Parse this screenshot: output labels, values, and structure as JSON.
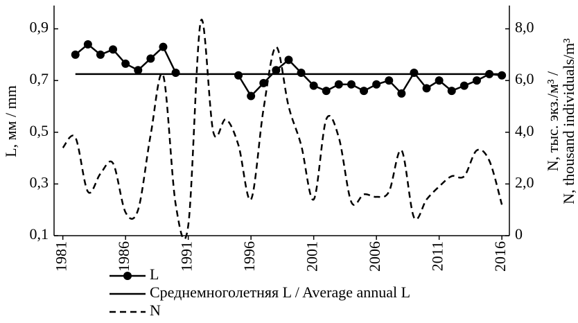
{
  "chart_data": {
    "type": "line",
    "y_label": "L, мм / mm",
    "y2_label": [
      "N, тыс. экз./м³ /",
      "N, thousand individuals/m³"
    ],
    "x": [
      1981,
      1982,
      1983,
      1984,
      1985,
      1986,
      1987,
      1988,
      1989,
      1990,
      1991,
      1992,
      1993,
      1994,
      1995,
      1996,
      1997,
      1998,
      1999,
      2000,
      2001,
      2002,
      2003,
      2004,
      2005,
      2006,
      2007,
      2008,
      2009,
      2010,
      2011,
      2012,
      2013,
      2014,
      2015,
      2016
    ],
    "series": [
      {
        "name": "L",
        "color": "#000000",
        "style": "solid",
        "marker": true,
        "values": [
          null,
          0.8,
          0.84,
          0.8,
          0.82,
          0.765,
          0.74,
          0.785,
          0.83,
          0.73,
          null,
          null,
          null,
          null,
          0.72,
          0.64,
          0.69,
          0.74,
          0.78,
          0.73,
          0.68,
          0.66,
          0.685,
          0.685,
          0.66,
          0.685,
          0.7,
          0.65,
          0.73,
          0.67,
          0.7,
          0.66,
          0.68,
          0.7,
          0.725,
          0.72
        ]
      },
      {
        "name": "N",
        "color": "#000000",
        "style": "dashed",
        "marker": false,
        "axis": "y2",
        "smooth": true,
        "values": [
          3.4,
          3.8,
          1.7,
          2.4,
          2.8,
          0.9,
          1.0,
          3.9,
          6.2,
          1.2,
          0.4,
          8.3,
          4.0,
          4.5,
          3.5,
          1.4,
          4.9,
          7.3,
          5.0,
          3.5,
          1.4,
          4.5,
          3.8,
          1.3,
          1.6,
          1.5,
          1.7,
          3.3,
          0.7,
          1.4,
          1.9,
          2.3,
          2.3,
          3.3,
          2.9,
          1.2
        ]
      }
    ],
    "mean_line": {
      "name": "Среднемноголетняя  L / Average annual L",
      "color": "#000000",
      "value": 0.725,
      "x": [
        1982,
        2016
      ]
    },
    "xlim": [
      1980.3,
      2016.6
    ],
    "xticks": [
      1981,
      1986,
      1991,
      1996,
      2001,
      2006,
      2011,
      2016
    ],
    "ylim": [
      0.1,
      0.99
    ],
    "yticks": [
      {
        "value": 0.1,
        "label": "0,1"
      },
      {
        "value": 0.3,
        "label": "0,3"
      },
      {
        "value": 0.5,
        "label": "0,5"
      },
      {
        "value": 0.7,
        "label": "0,7"
      },
      {
        "value": 0.9,
        "label": "0,9"
      }
    ],
    "y2lim": [
      0,
      8.9
    ],
    "y2ticks": [
      0,
      {
        "value": 2,
        "label": "2,0"
      },
      {
        "value": 4,
        "label": "4,0"
      },
      {
        "value": 6,
        "label": "6,0"
      },
      {
        "value": 8,
        "label": "8,0"
      }
    ],
    "grid": false
  }
}
